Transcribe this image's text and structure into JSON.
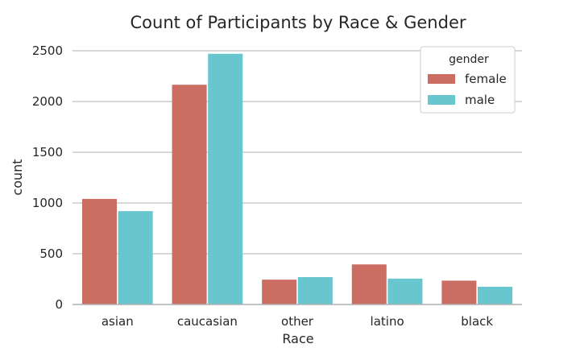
{
  "chart_data": {
    "type": "bar",
    "title": "Count of Participants by Race & Gender",
    "xlabel": "Race",
    "ylabel": "count",
    "categories": [
      "asian",
      "caucasian",
      "other",
      "latino",
      "black"
    ],
    "series": [
      {
        "name": "female",
        "values": [
          1040,
          2165,
          245,
          395,
          235
        ]
      },
      {
        "name": "male",
        "values": [
          920,
          2470,
          270,
          255,
          175
        ]
      }
    ],
    "ylim": [
      0,
      2500
    ],
    "yticks": [
      "0",
      "500",
      "1000",
      "1500",
      "2000",
      "2500"
    ],
    "grid": "horizontal",
    "legend": {
      "title": "gender",
      "placement": "top-right"
    },
    "colors": {
      "female": "#cc6d64",
      "male": "#68c6ce",
      "grid": "#cccccc",
      "axis": "#b0b0b0"
    }
  }
}
